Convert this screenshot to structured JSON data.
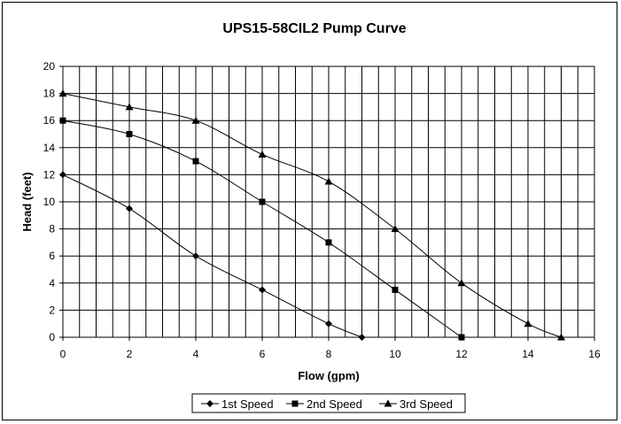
{
  "chart_data": {
    "type": "line",
    "title": "UPS15-58CIL2 Pump Curve",
    "xlabel": "Flow (gpm)",
    "ylabel": "Head (feet)",
    "xlim": [
      0,
      16
    ],
    "ylim": [
      0,
      20
    ],
    "x_ticks": [
      0,
      2,
      4,
      6,
      8,
      10,
      12,
      14,
      16
    ],
    "y_ticks": [
      0,
      2,
      4,
      6,
      8,
      10,
      12,
      14,
      16,
      18,
      20
    ],
    "x_gridline_step": 0.5,
    "y_gridline_step": 2,
    "grid": true,
    "legend_position": "bottom",
    "series": [
      {
        "name": "1st Speed",
        "marker": "diamond",
        "x": [
          0,
          2,
          4,
          6,
          8,
          9
        ],
        "y": [
          12,
          9.5,
          6,
          3.5,
          1,
          0
        ]
      },
      {
        "name": "2nd Speed",
        "marker": "square",
        "x": [
          0,
          2,
          4,
          6,
          8,
          10,
          12
        ],
        "y": [
          16,
          15,
          13,
          10,
          7,
          3.5,
          0
        ]
      },
      {
        "name": "3rd Speed",
        "marker": "triangle",
        "x": [
          0,
          2,
          4,
          6,
          8,
          10,
          12,
          14,
          15
        ],
        "y": [
          18,
          17,
          16,
          13.5,
          11.5,
          8,
          4,
          1,
          0
        ]
      }
    ]
  },
  "colors": {
    "line": "#000000",
    "grid": "#000000",
    "background": "#ffffff"
  }
}
